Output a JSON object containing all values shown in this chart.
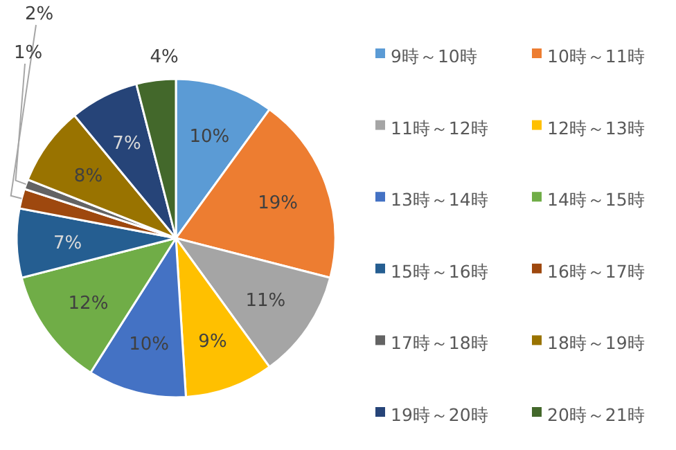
{
  "chart_data": {
    "type": "pie",
    "categories": [
      "9時～10時",
      "10時～11時",
      "11時～12時",
      "12時～13時",
      "13時～14時",
      "14時～15時",
      "15時～16時",
      "16時～17時",
      "17時～18時",
      "18時～19時",
      "19時～20時",
      "20時～21時"
    ],
    "values": [
      10,
      19,
      11,
      9,
      10,
      12,
      7,
      2,
      1,
      8,
      7,
      4
    ],
    "value_labels": [
      "10%",
      "19%",
      "11%",
      "9%",
      "10%",
      "12%",
      "7%",
      "2%",
      "1%",
      "8%",
      "7%",
      "4%"
    ],
    "colors": [
      "#5b9bd5",
      "#ed7d31",
      "#a5a5a5",
      "#ffc000",
      "#4472c4",
      "#70ad47",
      "#255e91",
      "#9e480e",
      "#636363",
      "#997300",
      "#264478",
      "#43682b"
    ],
    "legend": "right"
  }
}
